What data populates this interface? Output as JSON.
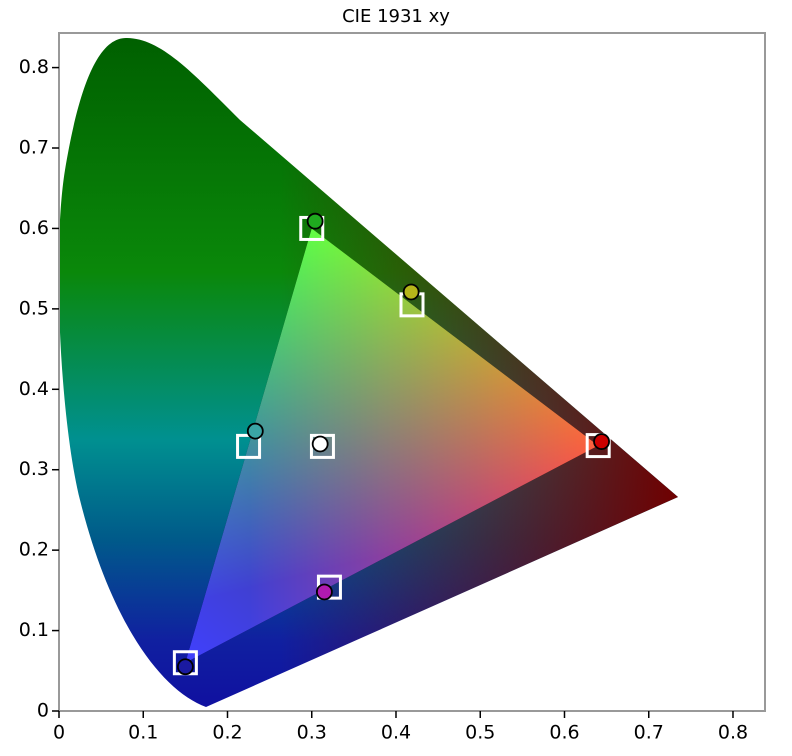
{
  "chart_data": {
    "type": "scatter",
    "title": "CIE 1931 xy",
    "xlim": [
      0,
      0.838
    ],
    "ylim": [
      0,
      0.843
    ],
    "xticks": [
      0,
      0.1,
      0.2,
      0.3,
      0.4,
      0.5,
      0.6,
      0.7,
      0.8
    ],
    "yticks": [
      0,
      0.1,
      0.2,
      0.3,
      0.4,
      0.5,
      0.6,
      0.7,
      0.8
    ],
    "series": [
      {
        "marker": "square",
        "color": "#ffffff",
        "x": [
          0.64,
          0.3,
          0.15,
          0.225,
          0.321,
          0.419,
          0.3127
        ],
        "y": [
          0.33,
          0.6,
          0.06,
          0.329,
          0.154,
          0.505,
          0.329
        ]
      },
      {
        "marker": "circle",
        "colors": [
          "#cc0000",
          "#1faa1f",
          "#1a1aa0",
          "#3aa5a5",
          "#b01ab0",
          "#b5b51a",
          "#ffffff"
        ],
        "x": [
          0.644,
          0.304,
          0.15,
          0.233,
          0.315,
          0.418,
          0.31
        ],
        "y": [
          0.335,
          0.609,
          0.055,
          0.348,
          0.148,
          0.521,
          0.332
        ]
      }
    ]
  }
}
